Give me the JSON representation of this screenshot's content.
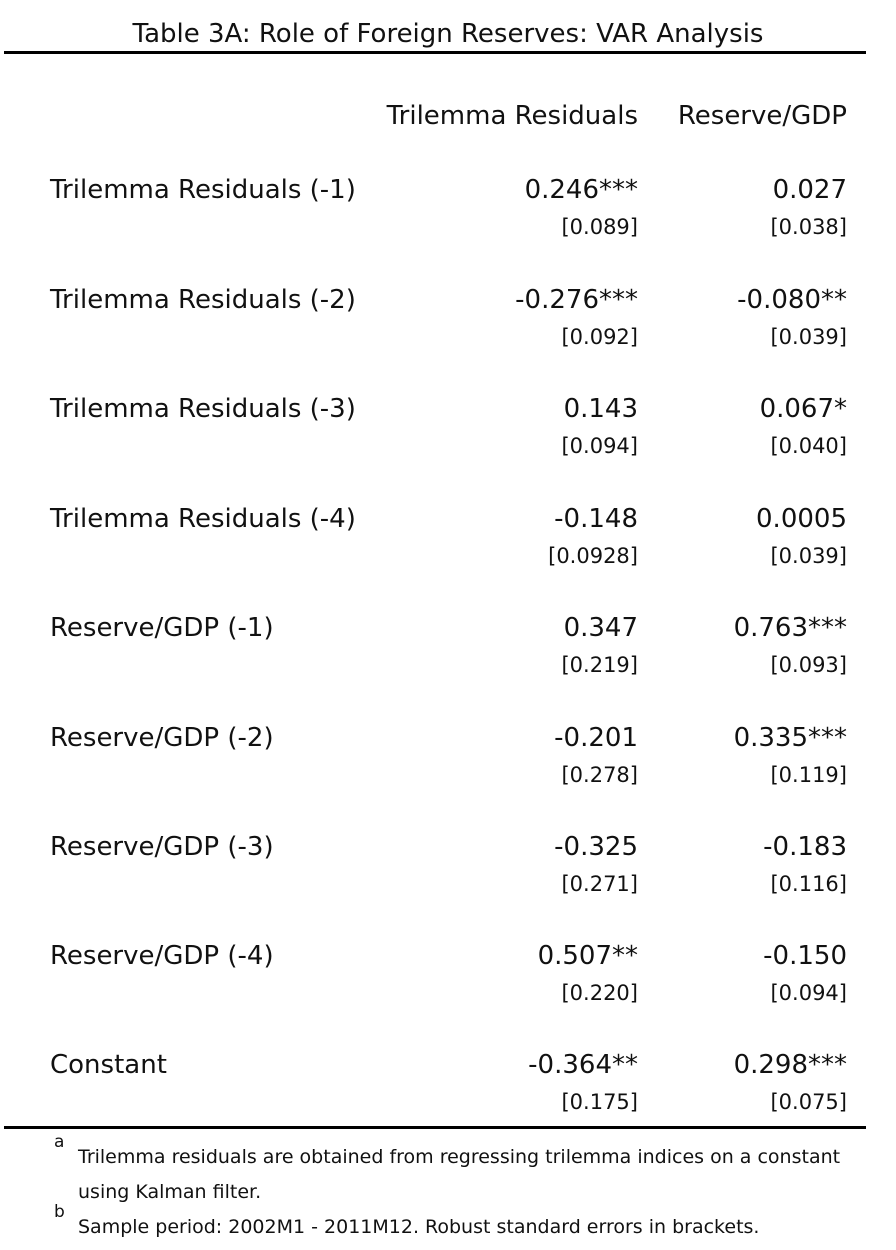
{
  "table": {
    "title": "Table 3A: Role of Foreign Reserves: VAR Analysis",
    "columns": [
      "Trilemma Residuals",
      "Reserve/GDP"
    ],
    "rows": [
      {
        "label": "Trilemma Residuals (-1)",
        "c1": "0.246***",
        "c1_se": "[0.089]",
        "c2": "0.027",
        "c2_se": "[0.038]"
      },
      {
        "label": "Trilemma Residuals (-2)",
        "c1": "-0.276***",
        "c1_se": "[0.092]",
        "c2": "-0.080**",
        "c2_se": "[0.039]"
      },
      {
        "label": "Trilemma Residuals (-3)",
        "c1": "0.143",
        "c1_se": "[0.094]",
        "c2": "0.067*",
        "c2_se": "[0.040]"
      },
      {
        "label": "Trilemma Residuals (-4)",
        "c1": "-0.148",
        "c1_se": "[0.0928]",
        "c2": "0.0005",
        "c2_se": "[0.039]"
      },
      {
        "label": "Reserve/GDP (-1)",
        "c1": "0.347",
        "c1_se": "[0.219]",
        "c2": "0.763***",
        "c2_se": "[0.093]"
      },
      {
        "label": "Reserve/GDP (-2)",
        "c1": "-0.201",
        "c1_se": "[0.278]",
        "c2": "0.335***",
        "c2_se": "[0.119]"
      },
      {
        "label": "Reserve/GDP (-3)",
        "c1": "-0.325",
        "c1_se": "[0.271]",
        "c2": "-0.183",
        "c2_se": "[0.116]"
      },
      {
        "label": "Reserve/GDP (-4)",
        "c1": "0.507**",
        "c1_se": "[0.220]",
        "c2": "-0.150",
        "c2_se": "[0.094]"
      },
      {
        "label": "Constant",
        "c1": "-0.364**",
        "c1_se": "[0.175]",
        "c2": "0.298***",
        "c2_se": "[0.075]"
      }
    ],
    "notes": [
      {
        "mark": "a",
        "text": "Trilemma residuals are obtained from regressing trilemma indices on a constant using Kalman filter."
      },
      {
        "mark": "b",
        "text": "Sample period: 2002M1 - 2011M12. Robust standard errors in brackets."
      }
    ]
  }
}
